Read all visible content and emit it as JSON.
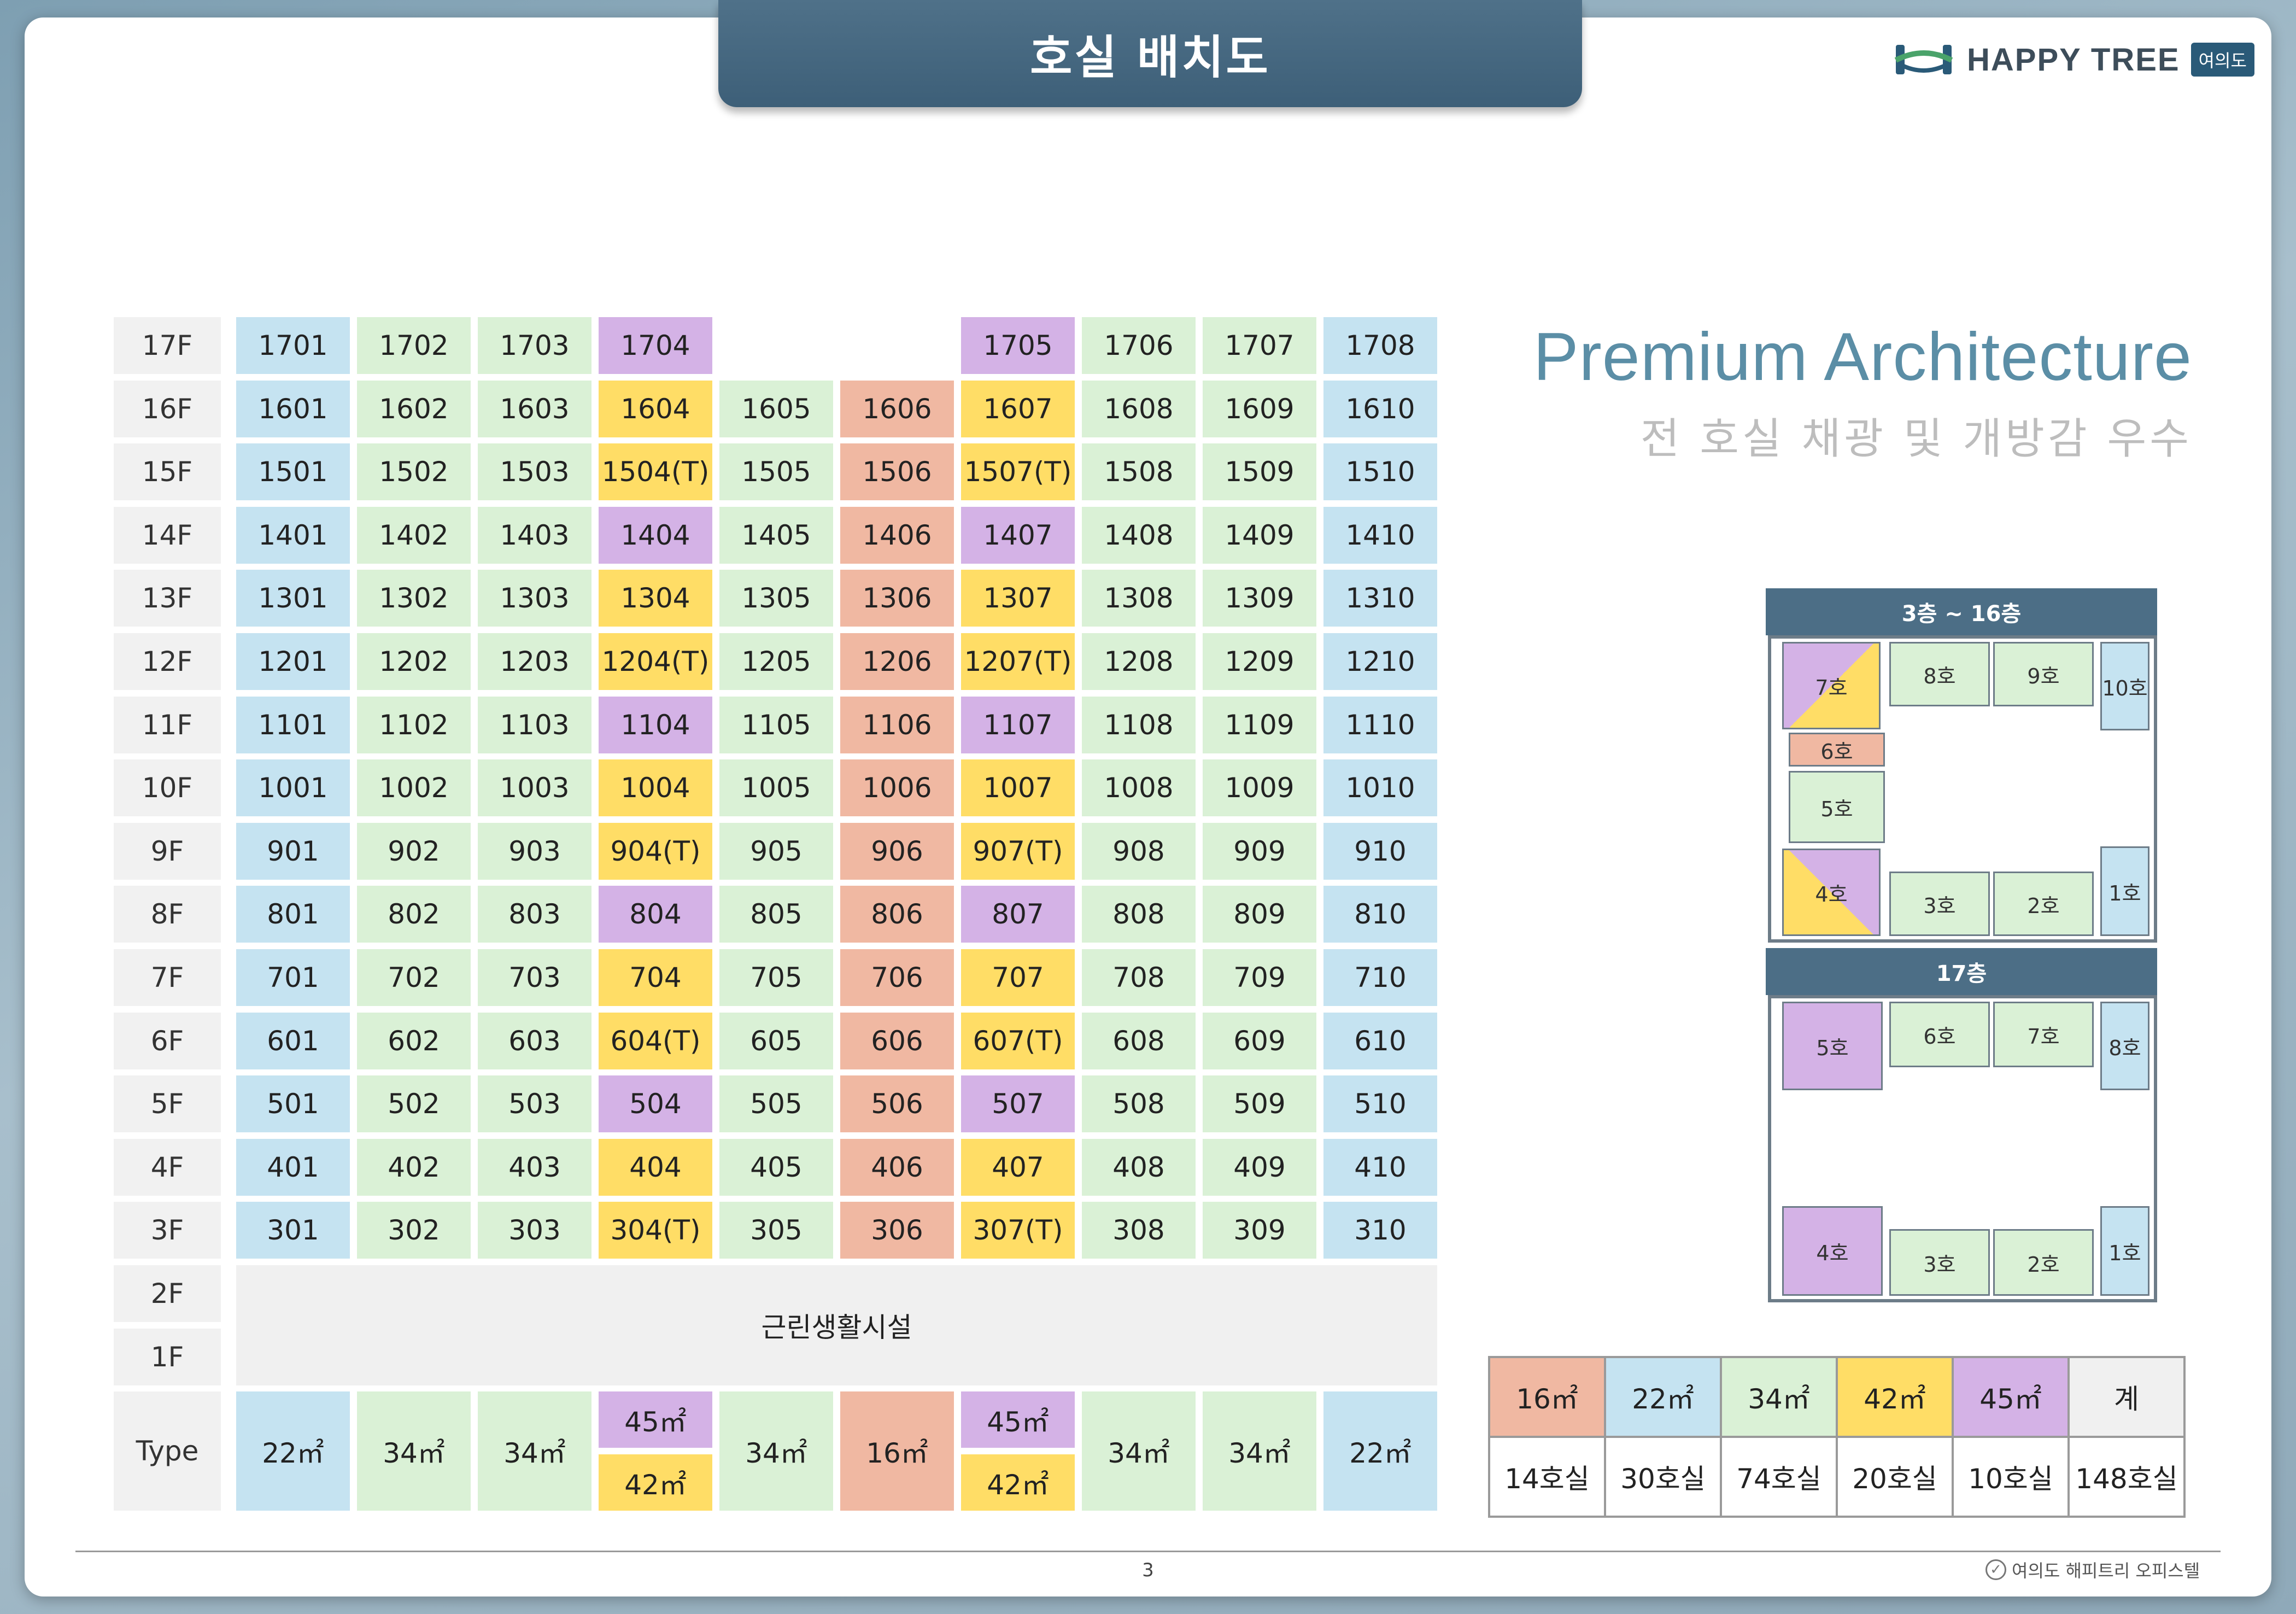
{
  "title": "호실 배치도",
  "logo": {
    "text": "HAPPY TREE",
    "badge": "여의도"
  },
  "premium": {
    "title": "Premium Architecture",
    "subtitle": "전 호실 채광 및 개방감 우수"
  },
  "floors": [
    {
      "label": "17F",
      "rooms": [
        "1701",
        "1702",
        "1703",
        "1704",
        "",
        "",
        "1705",
        "1706",
        "1707",
        "1708"
      ]
    },
    {
      "label": "16F",
      "rooms": [
        "1601",
        "1602",
        "1603",
        "1604",
        "1605",
        "1606",
        "1607",
        "1608",
        "1609",
        "1610"
      ]
    },
    {
      "label": "15F",
      "rooms": [
        "1501",
        "1502",
        "1503",
        "1504(T)",
        "1505",
        "1506",
        "1507(T)",
        "1508",
        "1509",
        "1510"
      ]
    },
    {
      "label": "14F",
      "rooms": [
        "1401",
        "1402",
        "1403",
        "1404",
        "1405",
        "1406",
        "1407",
        "1408",
        "1409",
        "1410"
      ]
    },
    {
      "label": "13F",
      "rooms": [
        "1301",
        "1302",
        "1303",
        "1304",
        "1305",
        "1306",
        "1307",
        "1308",
        "1309",
        "1310"
      ]
    },
    {
      "label": "12F",
      "rooms": [
        "1201",
        "1202",
        "1203",
        "1204(T)",
        "1205",
        "1206",
        "1207(T)",
        "1208",
        "1209",
        "1210"
      ]
    },
    {
      "label": "11F",
      "rooms": [
        "1101",
        "1102",
        "1103",
        "1104",
        "1105",
        "1106",
        "1107",
        "1108",
        "1109",
        "1110"
      ]
    },
    {
      "label": "10F",
      "rooms": [
        "1001",
        "1002",
        "1003",
        "1004",
        "1005",
        "1006",
        "1007",
        "1008",
        "1009",
        "1010"
      ]
    },
    {
      "label": "9F",
      "rooms": [
        "901",
        "902",
        "903",
        "904(T)",
        "905",
        "906",
        "907(T)",
        "908",
        "909",
        "910"
      ]
    },
    {
      "label": "8F",
      "rooms": [
        "801",
        "802",
        "803",
        "804",
        "805",
        "806",
        "807",
        "808",
        "809",
        "810"
      ]
    },
    {
      "label": "7F",
      "rooms": [
        "701",
        "702",
        "703",
        "704",
        "705",
        "706",
        "707",
        "708",
        "709",
        "710"
      ]
    },
    {
      "label": "6F",
      "rooms": [
        "601",
        "602",
        "603",
        "604(T)",
        "605",
        "606",
        "607(T)",
        "608",
        "609",
        "610"
      ]
    },
    {
      "label": "5F",
      "rooms": [
        "501",
        "502",
        "503",
        "504",
        "505",
        "506",
        "507",
        "508",
        "509",
        "510"
      ]
    },
    {
      "label": "4F",
      "rooms": [
        "401",
        "402",
        "403",
        "404",
        "405",
        "406",
        "407",
        "408",
        "409",
        "410"
      ]
    },
    {
      "label": "3F",
      "rooms": [
        "301",
        "302",
        "303",
        "304(T)",
        "305",
        "306",
        "307(T)",
        "308",
        "309",
        "310"
      ]
    }
  ],
  "row_colors": {
    "17F": [
      "blue",
      "green",
      "green",
      "purple",
      "",
      "",
      "purple",
      "green",
      "green",
      "blue"
    ],
    "default": [
      "blue",
      "green",
      "green",
      "yellow",
      "green",
      "orange",
      "yellow",
      "green",
      "green",
      "blue"
    ],
    "purple_floors": [
      "14F",
      "11F",
      "8F",
      "5F"
    ]
  },
  "lower": {
    "f2": "2F",
    "f1": "1F",
    "facility": "근린생활시설"
  },
  "type_row": {
    "label": "Type",
    "cells": [
      "22㎡",
      "34㎡",
      "34㎡",
      "45㎡|42㎡",
      "34㎡",
      "16㎡",
      "45㎡|42㎡",
      "34㎡",
      "34㎡",
      "22㎡"
    ],
    "colors": [
      "blue",
      "green",
      "green",
      "purple|yellow",
      "green",
      "orange",
      "purple|yellow",
      "green",
      "green",
      "blue"
    ]
  },
  "plan_a": {
    "title": "3층 ~ 16층",
    "rooms": {
      "r7": "7호",
      "r8": "8호",
      "r9": "9호",
      "r10": "10호",
      "r6": "6호",
      "r5": "5호",
      "r4": "4호",
      "r3": "3호",
      "r2": "2호",
      "r1": "1호"
    }
  },
  "plan_b": {
    "title": "17층",
    "rooms": {
      "r5": "5호",
      "r6": "6호",
      "r7": "7호",
      "r8": "8호",
      "r4": "4호",
      "r3": "3호",
      "r2": "2호",
      "r1": "1호"
    }
  },
  "summary": {
    "headers": [
      "16㎡",
      "22㎡",
      "34㎡",
      "42㎡",
      "45㎡",
      "계"
    ],
    "values": [
      "14호실",
      "30호실",
      "74호실",
      "20호실",
      "10호실",
      "148호실"
    ],
    "colors": [
      "#f0b8a2",
      "#c5e3f1",
      "#daf1d6",
      "#ffdd66",
      "#d4b2e6",
      "#f0f0f0"
    ]
  },
  "footer": {
    "page": "3",
    "brand": "여의도 해피트리 오피스텔"
  }
}
